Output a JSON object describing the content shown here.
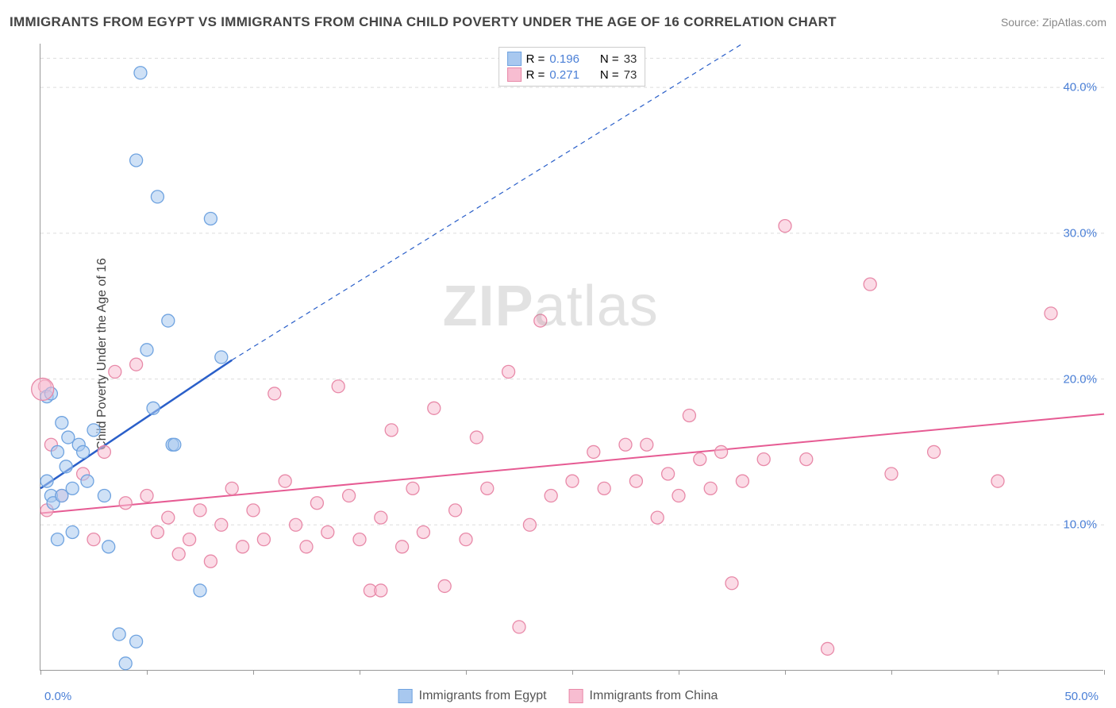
{
  "title": "IMMIGRANTS FROM EGYPT VS IMMIGRANTS FROM CHINA CHILD POVERTY UNDER THE AGE OF 16 CORRELATION CHART",
  "source": "Source: ZipAtlas.com",
  "y_axis_label": "Child Poverty Under the Age of 16",
  "watermark_bold": "ZIP",
  "watermark_light": "atlas",
  "chart": {
    "type": "scatter",
    "xlim": [
      0,
      50
    ],
    "ylim": [
      0,
      43
    ],
    "x_ticks": [
      0,
      5,
      10,
      15,
      20,
      25,
      30,
      35,
      40,
      45,
      50
    ],
    "x_tick_labels": {
      "0": "0.0%",
      "50": "50.0%"
    },
    "y_grid": [
      10,
      20,
      30,
      40
    ],
    "y_tick_labels": {
      "10": "10.0%",
      "20": "20.0%",
      "30": "30.0%",
      "40": "40.0%"
    },
    "background_color": "#ffffff",
    "grid_color": "#dddddd",
    "axis_color": "#999999",
    "tick_label_color": "#4a7fd6",
    "series": [
      {
        "name": "Immigrants from Egypt",
        "legend_label": "Immigrants from Egypt",
        "fill": "#a8c8ef",
        "stroke": "#6fa3e0",
        "fill_opacity": 0.55,
        "marker_radius": 8,
        "r_value": "0.196",
        "n_value": "33",
        "trend": {
          "x1": 0,
          "y1": 12.5,
          "x2": 9,
          "y2": 21.3,
          "dash_x2": 33,
          "dash_y2": 43,
          "color": "#2a5fc9",
          "width": 2
        },
        "points": [
          [
            0.3,
            18.8
          ],
          [
            0.3,
            13.0
          ],
          [
            0.5,
            12.0
          ],
          [
            0.5,
            19.0
          ],
          [
            0.6,
            11.5
          ],
          [
            0.8,
            9.0
          ],
          [
            0.8,
            15.0
          ],
          [
            1.0,
            12.0
          ],
          [
            1.0,
            17.0
          ],
          [
            1.2,
            14.0
          ],
          [
            1.3,
            16.0
          ],
          [
            1.5,
            12.5
          ],
          [
            1.5,
            9.5
          ],
          [
            1.8,
            15.5
          ],
          [
            2.0,
            15.0
          ],
          [
            2.2,
            13.0
          ],
          [
            2.5,
            16.5
          ],
          [
            3.0,
            12.0
          ],
          [
            3.2,
            8.5
          ],
          [
            3.7,
            2.5
          ],
          [
            4.0,
            0.5
          ],
          [
            4.5,
            2.0
          ],
          [
            4.5,
            35.0
          ],
          [
            4.7,
            41.0
          ],
          [
            5.0,
            22.0
          ],
          [
            5.5,
            32.5
          ],
          [
            6.0,
            24.0
          ],
          [
            6.2,
            15.5
          ],
          [
            6.3,
            15.5
          ],
          [
            7.5,
            5.5
          ],
          [
            8.0,
            31.0
          ],
          [
            8.5,
            21.5
          ],
          [
            5.3,
            18.0
          ]
        ]
      },
      {
        "name": "Immigrants from China",
        "legend_label": "Immigrants from China",
        "fill": "#f7bdd1",
        "stroke": "#e889a8",
        "fill_opacity": 0.55,
        "marker_radius": 8,
        "r_value": "0.271",
        "n_value": "73",
        "trend": {
          "x1": 0,
          "y1": 10.8,
          "x2": 50,
          "y2": 17.6,
          "color": "#e65b93",
          "width": 2
        },
        "points": [
          [
            0.2,
            19.5
          ],
          [
            0.3,
            11.0
          ],
          [
            0.5,
            15.5
          ],
          [
            1.0,
            12.0
          ],
          [
            2.0,
            13.5
          ],
          [
            2.5,
            9.0
          ],
          [
            3.0,
            15.0
          ],
          [
            3.5,
            20.5
          ],
          [
            4.0,
            11.5
          ],
          [
            4.5,
            21.0
          ],
          [
            5.0,
            12.0
          ],
          [
            5.5,
            9.5
          ],
          [
            6.0,
            10.5
          ],
          [
            6.5,
            8.0
          ],
          [
            7.0,
            9.0
          ],
          [
            7.5,
            11.0
          ],
          [
            8.0,
            7.5
          ],
          [
            8.5,
            10.0
          ],
          [
            9.0,
            12.5
          ],
          [
            9.5,
            8.5
          ],
          [
            10.0,
            11.0
          ],
          [
            10.5,
            9.0
          ],
          [
            11.0,
            19.0
          ],
          [
            11.5,
            13.0
          ],
          [
            12.0,
            10.0
          ],
          [
            12.5,
            8.5
          ],
          [
            13.0,
            11.5
          ],
          [
            13.5,
            9.5
          ],
          [
            14.0,
            19.5
          ],
          [
            14.5,
            12.0
          ],
          [
            15.0,
            9.0
          ],
          [
            15.5,
            5.5
          ],
          [
            16.0,
            10.5
          ],
          [
            16.5,
            16.5
          ],
          [
            17.0,
            8.5
          ],
          [
            17.5,
            12.5
          ],
          [
            18.0,
            9.5
          ],
          [
            18.5,
            18.0
          ],
          [
            19.0,
            5.8
          ],
          [
            19.5,
            11.0
          ],
          [
            20.0,
            9.0
          ],
          [
            20.5,
            16.0
          ],
          [
            21.0,
            12.5
          ],
          [
            22.0,
            20.5
          ],
          [
            22.5,
            3.0
          ],
          [
            23.0,
            10.0
          ],
          [
            23.5,
            24.0
          ],
          [
            24.0,
            12.0
          ],
          [
            25.0,
            13.0
          ],
          [
            26.0,
            15.0
          ],
          [
            26.5,
            12.5
          ],
          [
            27.5,
            15.5
          ],
          [
            28.0,
            13.0
          ],
          [
            28.5,
            15.5
          ],
          [
            29.0,
            10.5
          ],
          [
            29.5,
            13.5
          ],
          [
            30.0,
            12.0
          ],
          [
            30.5,
            17.5
          ],
          [
            31.0,
            14.5
          ],
          [
            31.5,
            12.5
          ],
          [
            32.0,
            15.0
          ],
          [
            32.5,
            6.0
          ],
          [
            33.0,
            13.0
          ],
          [
            34.0,
            14.5
          ],
          [
            35.0,
            30.5
          ],
          [
            36.0,
            14.5
          ],
          [
            37.0,
            1.5
          ],
          [
            39.0,
            26.5
          ],
          [
            40.0,
            13.5
          ],
          [
            42.0,
            15.0
          ],
          [
            45.0,
            13.0
          ],
          [
            47.5,
            24.5
          ],
          [
            16.0,
            5.5
          ]
        ]
      }
    ]
  },
  "legend_labels": {
    "r_prefix": "R =",
    "n_prefix": "N ="
  }
}
